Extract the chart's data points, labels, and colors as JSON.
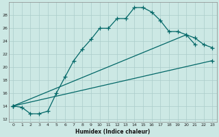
{
  "xlabel": "Humidex (Indice chaleur)",
  "ylabel": "",
  "background_color": "#cce8e4",
  "grid_color": "#aaccca",
  "line_color": "#006666",
  "xlim": [
    -0.5,
    23.5
  ],
  "ylim": [
    11.5,
    30.0
  ],
  "xticks": [
    0,
    1,
    2,
    3,
    4,
    5,
    6,
    7,
    8,
    9,
    10,
    11,
    12,
    13,
    14,
    15,
    16,
    17,
    18,
    19,
    20,
    21,
    22,
    23
  ],
  "yticks": [
    12,
    14,
    16,
    18,
    20,
    22,
    24,
    26,
    28
  ],
  "line1_x": [
    0,
    1,
    2,
    3,
    4,
    5,
    6,
    7,
    8,
    9,
    10,
    11,
    12,
    13,
    14,
    15,
    16,
    17,
    18,
    19,
    20,
    21
  ],
  "line1_y": [
    14.0,
    13.8,
    12.8,
    12.8,
    13.2,
    16.0,
    18.5,
    21.0,
    22.8,
    24.3,
    26.0,
    26.0,
    27.5,
    27.5,
    29.2,
    29.2,
    28.5,
    27.2,
    25.5,
    25.5,
    25.0,
    23.5
  ],
  "line2_x": [
    0,
    20,
    21,
    22,
    23
  ],
  "line2_y": [
    14.0,
    25.0,
    24.5,
    23.5,
    23.0
  ],
  "line3_x": [
    0,
    23
  ],
  "line3_y": [
    14.0,
    21.0
  ],
  "marker_size": 4
}
